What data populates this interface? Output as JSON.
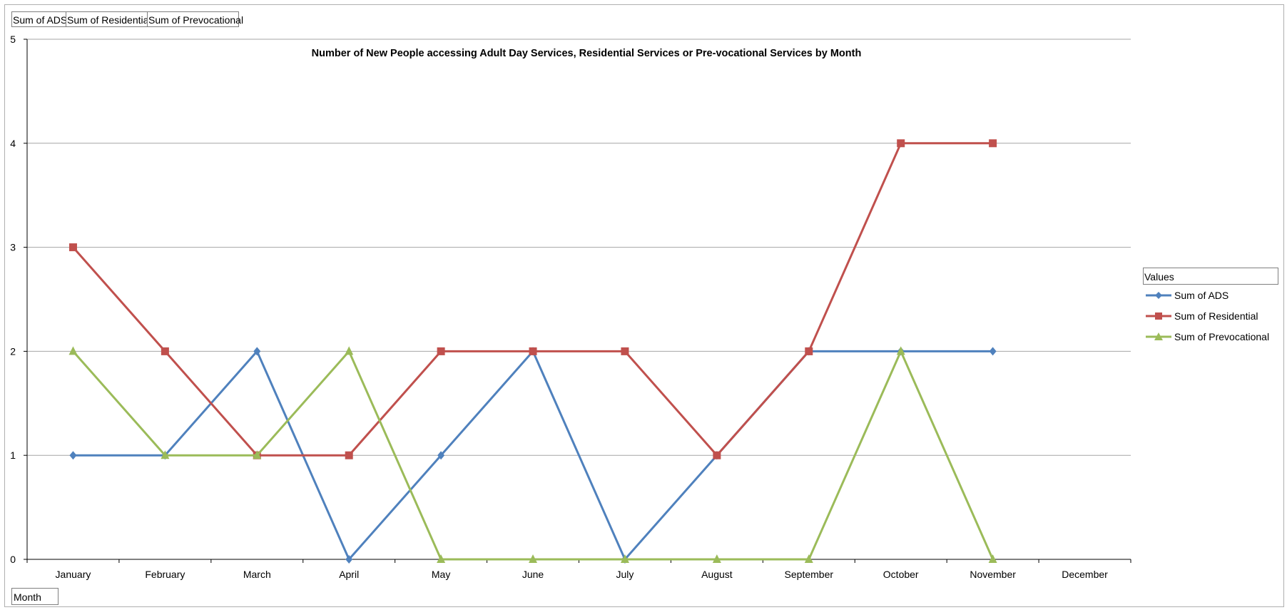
{
  "field_buttons": [
    "Sum of ADS",
    "Sum of Residential",
    "Sum of Prevocational"
  ],
  "axis_field": "Month",
  "legend_title": "Values",
  "colors": {
    "ads": "#4f81bd",
    "residential": "#c0504d",
    "prevocational": "#9bbb59",
    "grid": "#a6a6a6",
    "axis": "#000000"
  },
  "chart_data": {
    "type": "line",
    "title": "Number of New People accessing Adult Day Services, Residential Services or Pre-vocational Services by Month",
    "xlabel": "",
    "ylabel": "",
    "categories": [
      "January",
      "February",
      "March",
      "April",
      "May",
      "June",
      "July",
      "August",
      "September",
      "October",
      "November",
      "December"
    ],
    "ylim": [
      0,
      5
    ],
    "yticks": [
      0,
      1,
      2,
      3,
      4,
      5
    ],
    "grid": true,
    "legend": "right",
    "series": [
      {
        "name": "Sum of ADS",
        "marker": "diamond",
        "color": "#4f81bd",
        "values": [
          1,
          1,
          2,
          0,
          1,
          2,
          0,
          1,
          2,
          2,
          2,
          null
        ]
      },
      {
        "name": "Sum of Residential",
        "marker": "square",
        "color": "#c0504d",
        "values": [
          3,
          2,
          1,
          1,
          2,
          2,
          2,
          1,
          2,
          4,
          4,
          null
        ]
      },
      {
        "name": "Sum of Prevocational",
        "marker": "triangle",
        "color": "#9bbb59",
        "values": [
          2,
          1,
          1,
          2,
          0,
          0,
          0,
          0,
          0,
          2,
          0,
          null
        ]
      }
    ]
  }
}
